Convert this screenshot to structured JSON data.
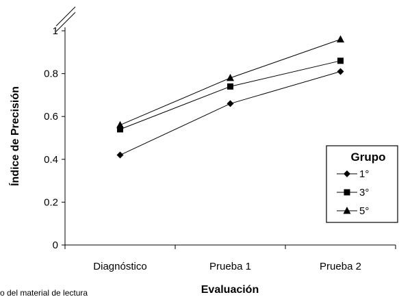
{
  "chart_data": {
    "type": "line",
    "categories": [
      "Diagnóstico",
      "Prueba 1",
      "Prueba 2"
    ],
    "series": [
      {
        "name": "1°",
        "marker": "diamond",
        "values": [
          0.42,
          0.66,
          0.81
        ]
      },
      {
        "name": "3°",
        "marker": "square",
        "values": [
          0.54,
          0.74,
          0.86
        ]
      },
      {
        "name": "5°",
        "marker": "triangle",
        "values": [
          0.56,
          0.78,
          0.96
        ]
      }
    ],
    "xlabel": "Evaluación",
    "ylabel": "Índice de Precisión",
    "ylim": [
      0,
      1
    ],
    "yticks": [
      "0",
      "0.2",
      "0.4",
      "0.6",
      "0.8",
      "1"
    ],
    "axis_break": true,
    "grid": false,
    "legend": {
      "title": "Grupo",
      "position": "right"
    },
    "colors": {
      "line": "#000000",
      "background": "#ffffff"
    }
  },
  "footnote": "o del material de lectura"
}
